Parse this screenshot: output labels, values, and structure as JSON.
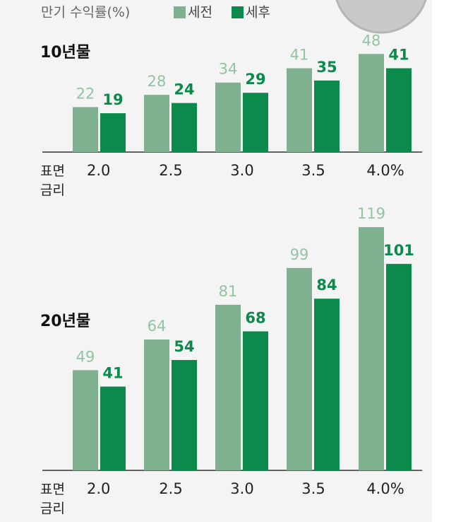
{
  "chart_data": [
    {
      "type": "bar",
      "title": "10년물",
      "legend_title": "만기 수익률(%)",
      "x_label": "표면\n금리",
      "categories": [
        "2.0",
        "2.5",
        "3.0",
        "3.5",
        "4.0%"
      ],
      "series": [
        {
          "name": "세전",
          "color": "#7fb08f",
          "values": [
            22,
            28,
            34,
            41,
            48
          ]
        },
        {
          "name": "세후",
          "color": "#0b8a4b",
          "values": [
            19,
            24,
            29,
            35,
            41
          ]
        }
      ]
    },
    {
      "type": "bar",
      "title": "20년물",
      "x_label": "표면\n금리",
      "categories": [
        "2.0",
        "2.5",
        "3.0",
        "3.5",
        "4.0%"
      ],
      "series": [
        {
          "name": "세전",
          "color": "#7fb08f",
          "values": [
            49,
            64,
            81,
            99,
            119
          ]
        },
        {
          "name": "세후",
          "color": "#0b8a4b",
          "values": [
            41,
            54,
            68,
            84,
            101
          ]
        }
      ]
    }
  ]
}
